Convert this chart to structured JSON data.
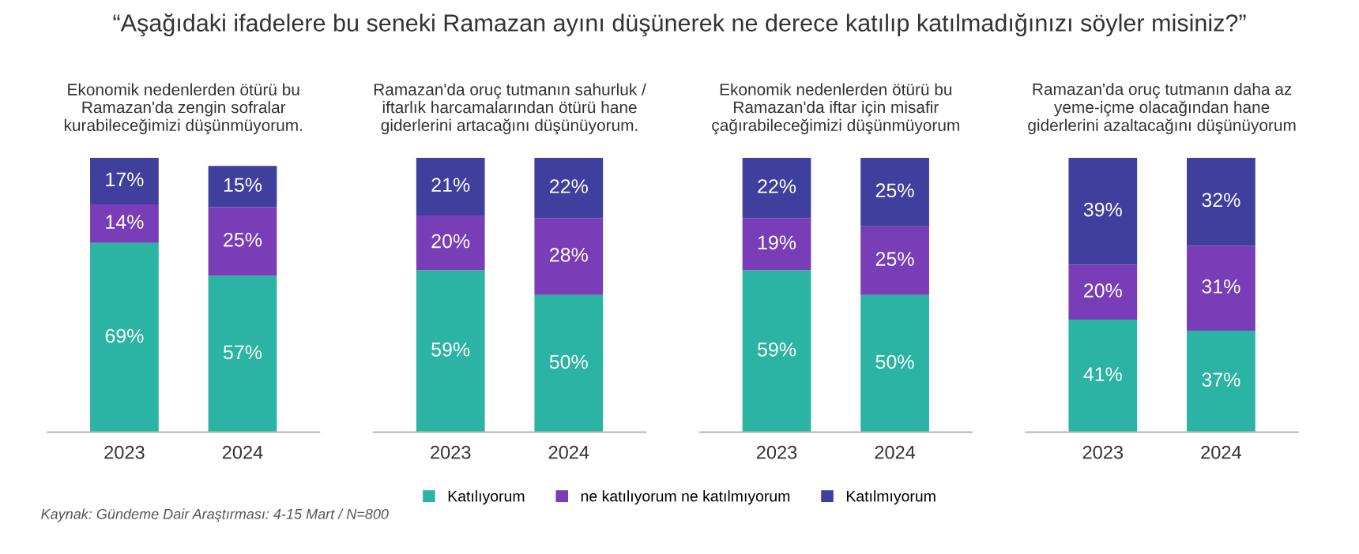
{
  "chart_data": [
    {
      "type": "other",
      "title": "“Aşağıdaki ifadelere bu seneki Ramazan ayını düşünerek ne derece katılıp katılmadığınızı söyler misiniz?”",
      "annotations": [
        "Kaynak: Gündeme Dair Araştırması: 4-15 Mart / N=800"
      ]
    },
    {
      "type": "bar",
      "stacked": true,
      "legend": "bottom",
      "title": "Ekonomik nedenlerden ötürü bu\nRamazan'da zengin sofralar\nkurabileceğimizi düşünmüyorum.",
      "categories": [
        "2023",
        "2024"
      ],
      "series": [
        {
          "name": "Katılıyorum",
          "color": "#2bb3a3",
          "values": [
            69,
            57
          ],
          "value_labels": [
            "69%",
            "57%"
          ]
        },
        {
          "name": "ne katılıyorum ne katılmıyorum",
          "color": "#7a3db8",
          "values": [
            14,
            25
          ],
          "value_labels": [
            "14%",
            "25%"
          ]
        },
        {
          "name": "Katılmıyorum",
          "color": "#3f3f9e",
          "values": [
            17,
            15
          ],
          "value_labels": [
            "17%",
            "15%"
          ]
        }
      ]
    },
    {
      "type": "bar",
      "stacked": true,
      "title": "Ramazan'da oruç tutmanın sahurluk /\niftarlık harcamalarından ötürü hane\ngiderlerini artacağını düşünüyorum.",
      "categories": [
        "2023",
        "2024"
      ],
      "series": [
        {
          "color": "#2bb3a3",
          "values": [
            59,
            50
          ],
          "value_labels": [
            "59%",
            "50%"
          ]
        },
        {
          "color": "#7a3db8",
          "values": [
            20,
            28
          ],
          "value_labels": [
            "20%",
            "28%"
          ]
        },
        {
          "color": "#3f3f9e",
          "values": [
            21,
            22
          ],
          "value_labels": [
            "21%",
            "22%"
          ]
        }
      ]
    },
    {
      "type": "bar",
      "stacked": true,
      "title": "Ekonomik nedenlerden ötürü bu\nRamazan'da iftar için misafir\nçağırabileceğimizi düşünmüyorum",
      "categories": [
        "2023",
        "2024"
      ],
      "series": [
        {
          "color": "#2bb3a3",
          "values": [
            59,
            50
          ],
          "value_labels": [
            "59%",
            "50%"
          ]
        },
        {
          "color": "#7a3db8",
          "values": [
            19,
            25
          ],
          "value_labels": [
            "19%",
            "25%"
          ]
        },
        {
          "color": "#3f3f9e",
          "values": [
            22,
            25
          ],
          "value_labels": [
            "22%",
            "25%"
          ]
        }
      ]
    },
    {
      "type": "bar",
      "stacked": true,
      "title": "Ramazan'da oruç tutmanın daha az\nyeme-içme olacağından hane\ngiderlerini azaltacağını düşünüyorum",
      "categories": [
        "2023",
        "2024"
      ],
      "series": [
        {
          "color": "#2bb3a3",
          "values": [
            41,
            37
          ],
          "value_labels": [
            "41%",
            "37%"
          ]
        },
        {
          "color": "#7a3db8",
          "values": [
            20,
            31
          ],
          "value_labels": [
            "20%",
            "31%"
          ]
        },
        {
          "color": "#3f3f9e",
          "values": [
            39,
            32
          ],
          "value_labels": [
            "39%",
            "32%"
          ]
        }
      ]
    }
  ]
}
